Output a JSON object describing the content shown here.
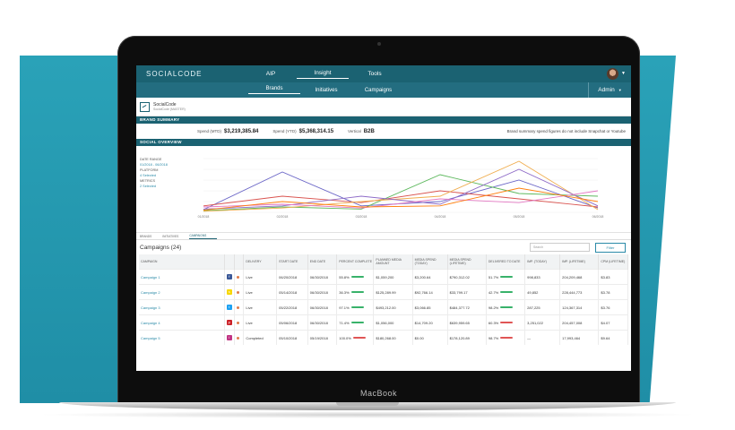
{
  "laptop_brand": "MacBook",
  "app": {
    "logo": "SOCIALCODE",
    "nav_primary": [
      "AIP",
      "Insight",
      "Tools"
    ],
    "nav_secondary": [
      "Brands",
      "Initiatives",
      "Campaigns"
    ],
    "admin_label": "Admin",
    "brand_name": "SocialCode",
    "brand_sub": "SocialCode (MASTER)"
  },
  "brand_summary": {
    "title": "BRAND SUMMARY",
    "spend_mtd_label": "Spend (MTD)",
    "spend_mtd": "$3,219,385.84",
    "spend_ytd_label": "Spend (YTD)",
    "spend_ytd": "$5,368,314.15",
    "vertical_label": "Vertical",
    "vertical": "B2B",
    "note": "Brand summary spend figures do not include Snapchat or Youtube"
  },
  "social_overview": {
    "title": "SOCIAL OVERVIEW",
    "date_range_label": "DATE RANGE",
    "date_range": "01/2018 - 06/2018",
    "platform_label": "PLATFORM",
    "platform": "4 Selected",
    "metrics_label": "METRICS",
    "metrics": "2 Selected",
    "tabs": [
      "BRANDS",
      "INITIATIVES",
      "CAMPAIGNS"
    ]
  },
  "chart_data": {
    "type": "line",
    "x": [
      "01/2018",
      "02/2018",
      "03/2018",
      "04/2018",
      "05/2018",
      "06/2018"
    ],
    "series": [
      {
        "values": [
          5,
          75,
          12,
          20,
          60,
          8
        ],
        "color": "#6b66c7"
      },
      {
        "values": [
          12,
          30,
          18,
          40,
          25,
          10
        ],
        "color": "#d9534f"
      },
      {
        "values": [
          3,
          10,
          6,
          70,
          35,
          30
        ],
        "color": "#5cb85c"
      },
      {
        "values": [
          2,
          8,
          20,
          30,
          95,
          5
        ],
        "color": "#f0ad4e"
      },
      {
        "values": [
          6,
          12,
          30,
          15,
          80,
          12
        ],
        "color": "#8e6bc7"
      },
      {
        "values": [
          10,
          15,
          8,
          25,
          18,
          40
        ],
        "color": "#e377c2"
      },
      {
        "values": [
          4,
          20,
          10,
          12,
          45,
          20
        ],
        "color": "#ff7f0e"
      }
    ],
    "ylim": [
      0,
      100
    ]
  },
  "campaigns": {
    "title": "Campaigns (24)",
    "search_placeholder": "Search",
    "filter_label": "Filter",
    "columns": [
      "CAMPAIGN",
      "",
      "",
      "DELIVERY",
      "START DATE",
      "END DATE",
      "PERCENT COMPLETE",
      "PLANNED MEDIA AMOUNT",
      "MEDIA SPEND (TODAY)",
      "MEDIA SPEND (LIFETIME)",
      "DELIVERED TO DATE",
      "IMP. (TODAY)",
      "IMP. (LIFETIME)",
      "CPM (LIFETIME)"
    ],
    "rows": [
      {
        "name": "Campaign 1",
        "platform": "f",
        "platform_color": "#3b5998",
        "delivery": "Live",
        "start": "06/20/2018",
        "end": "06/30/2018",
        "pct": "55.8%",
        "pct_bar": "green",
        "planned": "$1,059,200",
        "spend_today": "$3,200.64",
        "spend_life": "$790,312.02",
        "delivered": "51.7%",
        "delivered_bar": "green",
        "imp_today": "998,833",
        "imp_life": "204,209,468",
        "cpm": "$3.83"
      },
      {
        "name": "Campaign 2",
        "platform": "s",
        "platform_color": "#f7d700",
        "delivery": "Live",
        "start": "05/14/2018",
        "end": "06/30/2018",
        "pct": "36.3%",
        "pct_bar": "green",
        "planned": "$125,289.99",
        "spend_today": "$92,766.14",
        "spend_life": "$33,799.17",
        "delivered": "42.7%",
        "delivered_bar": "green",
        "imp_today": "49,852",
        "imp_life": "228,444,773",
        "cpm": "$3.78"
      },
      {
        "name": "Campaign 3",
        "platform": "t",
        "platform_color": "#1da1f2",
        "delivery": "Live",
        "start": "05/22/2018",
        "end": "06/30/2018",
        "pct": "97.1%",
        "pct_bar": "green",
        "planned": "$493,212.00",
        "spend_today": "$3,066.85",
        "spend_life": "$484,377.72",
        "delivered": "98.2%",
        "delivered_bar": "green",
        "imp_today": "287,225",
        "imp_life": "124,367,314",
        "cpm": "$3.76"
      },
      {
        "name": "Campaign 4",
        "platform": "p",
        "platform_color": "#cb2027",
        "delivery": "Live",
        "start": "05/06/2018",
        "end": "06/30/2018",
        "pct": "71.4%",
        "pct_bar": "green",
        "planned": "$1,056,000",
        "spend_today": "$14,709.20",
        "spend_life": "$639,959.65",
        "delivered": "60.3%",
        "delivered_bar": "red",
        "imp_today": "3,251,022",
        "imp_life": "204,457,008",
        "cpm": "$4.07"
      },
      {
        "name": "Campaign 5",
        "platform": "i",
        "platform_color": "#c13584",
        "delivery": "Completed",
        "start": "05/10/2018",
        "end": "05/19/2018",
        "pct": "100.0%",
        "pct_bar": "red",
        "planned": "$180,268.00",
        "spend_today": "$0.00",
        "spend_life": "$178,120.89",
        "delivered": "98.7%",
        "delivered_bar": "red",
        "imp_today": "—",
        "imp_life": "17,993,464",
        "cpm": "$9.64"
      }
    ]
  }
}
